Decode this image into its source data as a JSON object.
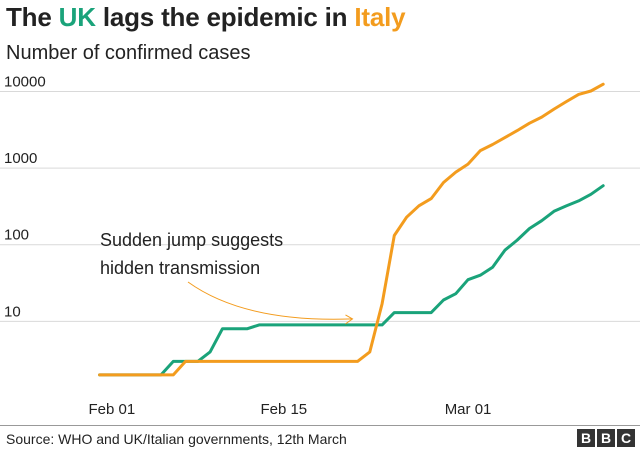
{
  "header": {
    "title_parts": [
      {
        "text": "The ",
        "color": "#222222"
      },
      {
        "text": "UK",
        "color": "#1aa37a"
      },
      {
        "text": " lags the epidemic in ",
        "color": "#222222"
      },
      {
        "text": "Italy",
        "color": "#f39c1e"
      }
    ]
  },
  "colors": {
    "uk": "#1aa37a",
    "italy": "#f39c1e",
    "grid": "#d9d9d9",
    "text": "#222222"
  },
  "chart_data": {
    "type": "line",
    "subtitle": "Number of confirmed cases",
    "y_scale": "log",
    "ylim": [
      1,
      15000
    ],
    "xlim": [
      "2020-01-29",
      "2020-03-15"
    ],
    "yticks": [
      10,
      100,
      1000,
      10000
    ],
    "ytick_labels": [
      "10",
      "100",
      "1000",
      "10000"
    ],
    "xticks": [
      "2020-02-01",
      "2020-02-15",
      "2020-03-01"
    ],
    "xtick_labels": [
      "Feb 01",
      "Feb 15",
      "Mar 01"
    ],
    "grid": true,
    "legend": "none",
    "series": [
      {
        "key": "uk",
        "x": [
          "2020-01-31",
          "2020-02-01",
          "2020-02-02",
          "2020-02-03",
          "2020-02-04",
          "2020-02-05",
          "2020-02-06",
          "2020-02-07",
          "2020-02-08",
          "2020-02-09",
          "2020-02-10",
          "2020-02-11",
          "2020-02-12",
          "2020-02-13",
          "2020-02-14",
          "2020-02-15",
          "2020-02-16",
          "2020-02-17",
          "2020-02-18",
          "2020-02-19",
          "2020-02-20",
          "2020-02-21",
          "2020-02-22",
          "2020-02-23",
          "2020-02-24",
          "2020-02-25",
          "2020-02-26",
          "2020-02-27",
          "2020-02-28",
          "2020-02-29",
          "2020-03-01",
          "2020-03-02",
          "2020-03-03",
          "2020-03-04",
          "2020-03-05",
          "2020-03-06",
          "2020-03-07",
          "2020-03-08",
          "2020-03-09",
          "2020-03-10",
          "2020-03-11",
          "2020-03-12"
        ],
        "values": [
          2,
          2,
          2,
          2,
          2,
          2,
          3,
          3,
          3,
          4,
          8,
          8,
          8,
          9,
          9,
          9,
          9,
          9,
          9,
          9,
          9,
          9,
          9,
          9,
          13,
          13,
          13,
          13,
          19,
          23,
          35,
          40,
          51,
          85,
          115,
          163,
          206,
          273,
          321,
          373,
          456,
          590
        ]
      },
      {
        "key": "italy",
        "x": [
          "2020-01-31",
          "2020-02-01",
          "2020-02-02",
          "2020-02-03",
          "2020-02-04",
          "2020-02-05",
          "2020-02-06",
          "2020-02-07",
          "2020-02-08",
          "2020-02-09",
          "2020-02-10",
          "2020-02-11",
          "2020-02-12",
          "2020-02-13",
          "2020-02-14",
          "2020-02-15",
          "2020-02-16",
          "2020-02-17",
          "2020-02-18",
          "2020-02-19",
          "2020-02-20",
          "2020-02-21",
          "2020-02-22",
          "2020-02-23",
          "2020-02-24",
          "2020-02-25",
          "2020-02-26",
          "2020-02-27",
          "2020-02-28",
          "2020-02-29",
          "2020-03-01",
          "2020-03-02",
          "2020-03-03",
          "2020-03-04",
          "2020-03-05",
          "2020-03-06",
          "2020-03-07",
          "2020-03-08",
          "2020-03-09",
          "2020-03-10",
          "2020-03-11",
          "2020-03-12"
        ],
        "values": [
          2,
          2,
          2,
          2,
          2,
          2,
          2,
          3,
          3,
          3,
          3,
          3,
          3,
          3,
          3,
          3,
          3,
          3,
          3,
          3,
          3,
          3,
          4,
          17,
          132,
          229,
          322,
          400,
          650,
          888,
          1128,
          1694,
          2036,
          2502,
          3089,
          3858,
          4636,
          5883,
          7375,
          9172,
          10149,
          12462
        ]
      }
    ],
    "annotation": {
      "lines": [
        "Sudden jump suggests",
        "hidden transmission"
      ],
      "target_x": "2020-02-21",
      "target_y": 9
    }
  },
  "footer": {
    "source": "Source: WHO and UK/Italian governments, 12th March",
    "logo_letters": [
      "B",
      "B",
      "C"
    ]
  }
}
